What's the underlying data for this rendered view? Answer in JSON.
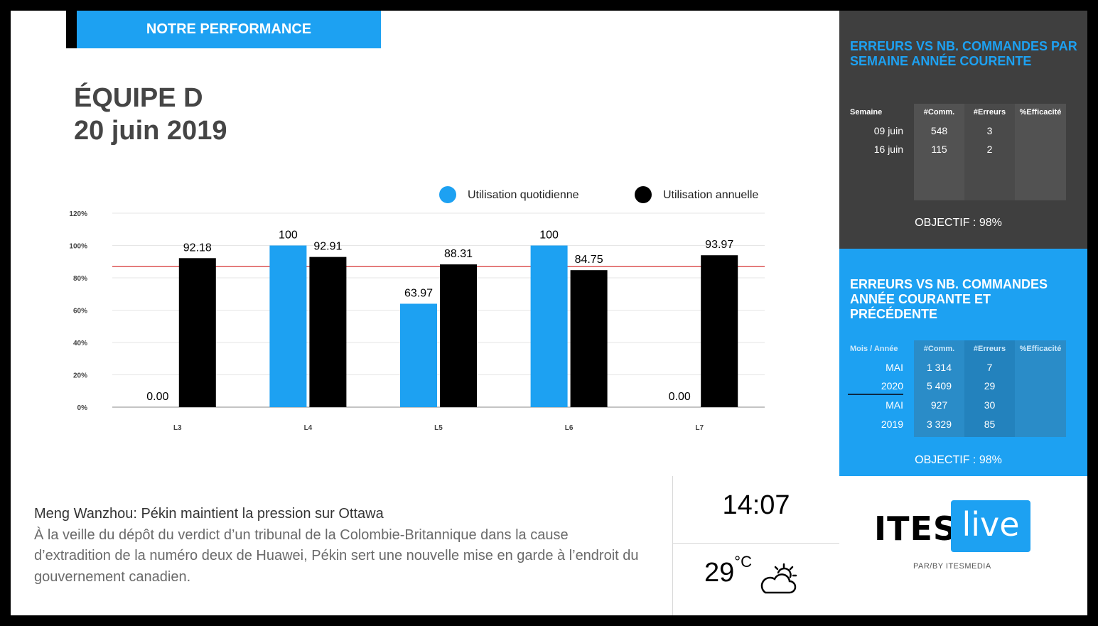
{
  "header": {
    "badge": "NOTRE PERFORMANCE"
  },
  "title": {
    "line1": "ÉQUIPE D",
    "line2": "20 juin 2019"
  },
  "chart_data": {
    "type": "bar",
    "categories": [
      "L3",
      "L4",
      "L5",
      "L6",
      "L7"
    ],
    "series": [
      {
        "name": "Utilisation quotidienne",
        "color": "#1da1f2",
        "values": [
          0,
          100,
          63.97,
          100,
          0
        ],
        "labels": [
          "0.00",
          "100",
          "63.97",
          "100",
          "0.00"
        ]
      },
      {
        "name": "Utilisation annuelle",
        "color": "#000000",
        "values": [
          92.18,
          92.91,
          88.31,
          84.75,
          93.97
        ],
        "labels": [
          "92.18",
          "92.91",
          "88.31",
          "84.75",
          "93.97"
        ]
      }
    ],
    "yticks": [
      "0%",
      "20%",
      "40%",
      "60%",
      "80%",
      "100%",
      "120%"
    ],
    "ylim": [
      0,
      120
    ],
    "target_line": {
      "value": 87,
      "color": "#cc0000"
    },
    "legend": "top-right",
    "grid": true
  },
  "news": {
    "title": "Meng Wanzhou: Pékin maintient la pression sur Ottawa",
    "body": "À la veille du dépôt du verdict d’un tribunal de la Colombie-Britannique dans la cause d’extradition de la numéro deux de Huawei, Pékin sert une nouvelle mise en garde à l’endroit du gouvernement canadien."
  },
  "clock": "14:07",
  "weather": {
    "temp": "29",
    "unit": "°C",
    "icon": "partly-cloudy-icon"
  },
  "panel_week": {
    "title": "ERREURS VS NB. COMMANDES PAR SEMAINE ANNÉE COURENTE",
    "headers": [
      "Semaine",
      "#Comm.",
      "#Erreurs",
      "%Efficacité"
    ],
    "rows": [
      [
        "09 juin",
        "548",
        "3",
        ""
      ],
      [
        "16 juin",
        "115",
        "2",
        ""
      ]
    ],
    "objectif": "OBJECTIF : 98%"
  },
  "panel_month": {
    "title": "ERREURS VS NB. COMMANDES ANNÉE COURANTE ET PRÉCÉDENTE",
    "headers": [
      "Mois / Année",
      "#Comm.",
      "#Erreurs",
      "%Efficacité"
    ],
    "rows": [
      [
        "MAI",
        "1 314",
        "7",
        ""
      ],
      [
        "2020",
        "5 409",
        "29",
        ""
      ],
      [
        "MAI",
        "927",
        "30",
        ""
      ],
      [
        "2019",
        "3 329",
        "85",
        ""
      ]
    ],
    "objectif": "OBJECTIF : 98%"
  },
  "logo": {
    "part1": "ITES",
    "part2": "live",
    "sub": "PAR/BY ITESMEDIA"
  },
  "colors": {
    "accent": "#1da1f2",
    "dark_panel": "#3f3f3f"
  }
}
